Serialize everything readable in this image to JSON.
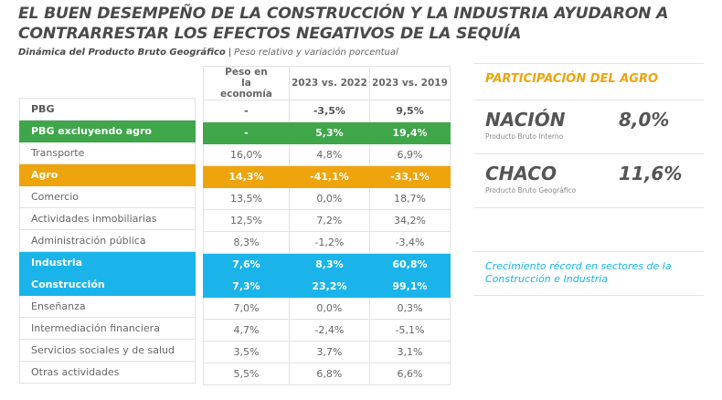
{
  "header": {
    "title": "EL BUEN DESEMPEÑO DE LA CONSTRUCCIÓN Y LA INDUSTRIA AYUDARON A CONTRARRESTAR LOS EFECTOS NEGATIVOS DE LA SEQUÍA",
    "subtitle_bold": "Dinámica del Producto Bruto Geográfico",
    "subtitle_sep": "|",
    "subtitle_regular": "Peso relativo y variación porcentual"
  },
  "colors": {
    "green": "#3fa64a",
    "orange": "#eea40d",
    "blue": "#1ab4ea"
  },
  "table": {
    "columns": [
      "Peso en la economía",
      "2023 vs. 2022",
      "2023 vs. 2019"
    ],
    "rows": [
      {
        "label": "PBG",
        "values": [
          "-",
          "-3,5%",
          "9,5%"
        ],
        "highlight": ""
      },
      {
        "label": "PBG excluyendo agro",
        "values": [
          "-",
          "5,3%",
          "19,4%"
        ],
        "highlight": "green"
      },
      {
        "label": "Transporte",
        "values": [
          "16,0%",
          "4,8%",
          "6,9%"
        ],
        "highlight": ""
      },
      {
        "label": "Agro",
        "values": [
          "14,3%",
          "-41,1%",
          "-33,1%"
        ],
        "highlight": "orange"
      },
      {
        "label": "Comercio",
        "values": [
          "13,5%",
          "0,0%",
          "18,7%"
        ],
        "highlight": ""
      },
      {
        "label": "Actividades inmobiliarias",
        "values": [
          "12,5%",
          "7,2%",
          "34,2%"
        ],
        "highlight": ""
      },
      {
        "label": "Administración pública",
        "values": [
          "8,3%",
          "-1,2%",
          "-3,4%"
        ],
        "highlight": ""
      },
      {
        "label": "Industria",
        "values": [
          "7,6%",
          "8,3%",
          "60,8%"
        ],
        "highlight": "blue"
      },
      {
        "label": "Construcción",
        "values": [
          "7,3%",
          "23,2%",
          "99,1%"
        ],
        "highlight": "blue"
      },
      {
        "label": "Enseñanza",
        "values": [
          "7,0%",
          "0,0%",
          "0,3%"
        ],
        "highlight": ""
      },
      {
        "label": "Intermediación financiera",
        "values": [
          "4,7%",
          "-2,4%",
          "-5,1%"
        ],
        "highlight": ""
      },
      {
        "label": "Servicios sociales y de salud",
        "values": [
          "3,5%",
          "3,7%",
          "3,1%"
        ],
        "highlight": ""
      },
      {
        "label": "Otras actividades",
        "values": [
          "5,5%",
          "6,8%",
          "6,6%"
        ],
        "highlight": ""
      }
    ]
  },
  "panel": {
    "title": "PARTICIPACIÓN DEL AGRO",
    "nacion": {
      "name": "NACIÓN",
      "sub": "Producto Bruto Interno",
      "value": "8,0%"
    },
    "chaco": {
      "name": "CHACO",
      "sub": "Producto Bruto Geográfico",
      "value": "11,6%"
    },
    "note": "Crecimiento récord en sectores de la Construcción e Industria"
  }
}
